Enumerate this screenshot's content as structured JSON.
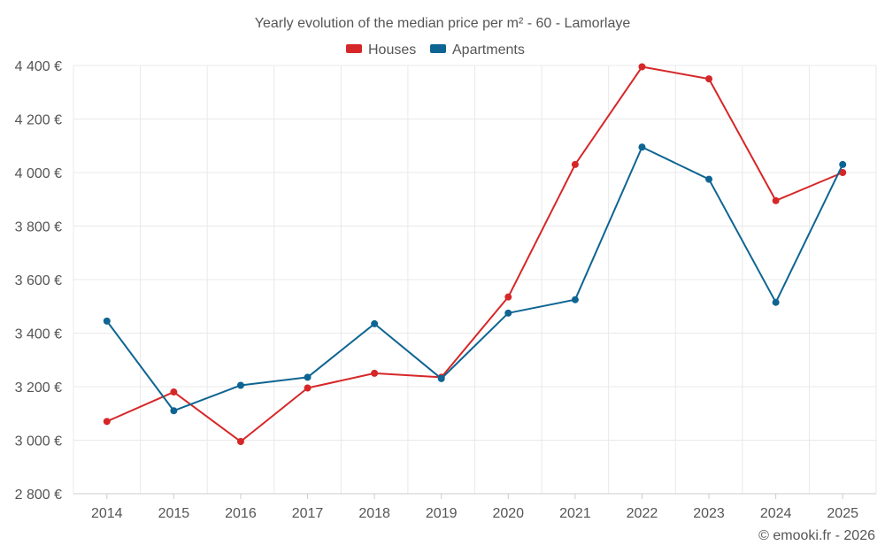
{
  "chart_data": {
    "type": "line",
    "title": "Yearly evolution of the median price per m² - 60 - Lamorlaye",
    "categories": [
      "2014",
      "2015",
      "2016",
      "2017",
      "2018",
      "2019",
      "2020",
      "2021",
      "2022",
      "2023",
      "2024",
      "2025"
    ],
    "series": [
      {
        "name": "Houses",
        "color": "#d62728",
        "values": [
          3070,
          3180,
          2995,
          3195,
          3250,
          3235,
          3535,
          4030,
          4395,
          4350,
          3895,
          4000
        ]
      },
      {
        "name": "Apartments",
        "color": "#0e6593",
        "values": [
          3445,
          3110,
          3205,
          3235,
          3435,
          3230,
          3475,
          3525,
          4095,
          3975,
          3515,
          4030
        ]
      }
    ],
    "ylim": [
      2800,
      4400
    ],
    "yticks": [
      2800,
      3000,
      3200,
      3400,
      3600,
      3800,
      4000,
      4200,
      4400
    ],
    "ytick_labels": [
      "2 800 €",
      "3 000 €",
      "3 200 €",
      "3 400 €",
      "3 600 €",
      "3 800 €",
      "4 000 €",
      "4 200 €",
      "4 400 €"
    ],
    "xlabel": "",
    "ylabel": "",
    "grid": true,
    "legend_position": "top-center"
  },
  "credit": "© emooki.fr - 2026"
}
